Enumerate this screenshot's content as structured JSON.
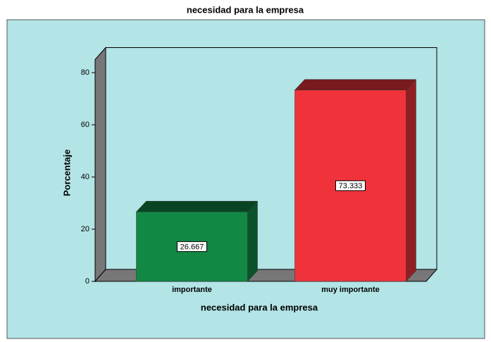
{
  "chart_data": {
    "type": "bar3d",
    "title": "necesidad para la empresa",
    "categories": [
      "importante",
      "muy importante"
    ],
    "values": [
      26.667,
      73.333
    ],
    "colors": [
      "#118844",
      "#f0333b"
    ],
    "xlabel": "necesidad para la empresa",
    "ylabel": "Porcentaje",
    "ylim": [
      0,
      85
    ],
    "yticks": [
      0,
      20,
      40,
      60,
      80
    ]
  }
}
